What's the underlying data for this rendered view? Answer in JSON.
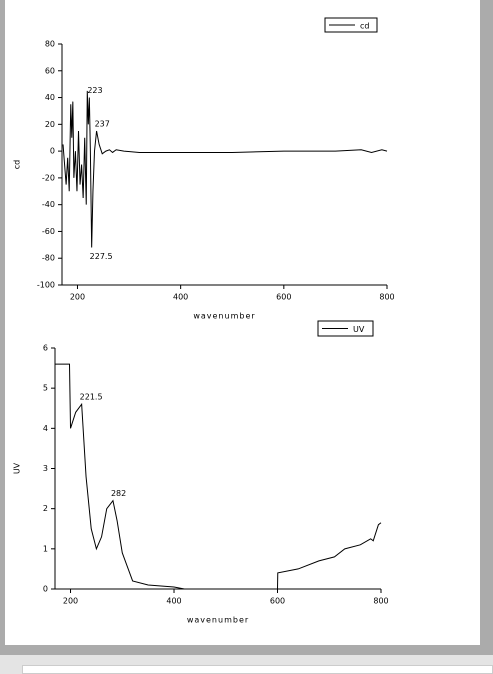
{
  "chart_data": [
    {
      "type": "line",
      "xlabel": "wavenumber",
      "ylabel": "cd",
      "x": [
        172,
        175,
        178,
        181,
        184,
        187,
        189,
        191,
        193,
        196,
        199,
        202,
        205,
        208,
        211,
        214,
        217,
        219,
        221,
        223,
        225,
        227.5,
        230,
        233,
        237,
        242,
        248,
        255,
        262,
        268,
        275,
        290,
        320,
        400,
        500,
        600,
        700,
        750,
        770,
        790,
        800
      ],
      "series": [
        {
          "name": "cd",
          "color": "#000000",
          "values": [
            5,
            -10,
            -25,
            -5,
            -30,
            35,
            10,
            37,
            -20,
            0,
            -30,
            15,
            -25,
            -10,
            -35,
            10,
            -40,
            45,
            20,
            40,
            0,
            -72,
            -30,
            0,
            15,
            5,
            -2,
            0,
            1,
            -1,
            1,
            0,
            -1,
            -1,
            -1,
            0,
            0,
            1,
            -1,
            1,
            0
          ]
        }
      ],
      "annotations": [
        "223",
        "237",
        "227.5"
      ],
      "xlim": [
        170,
        800
      ],
      "xticks": [
        200,
        400,
        600,
        800
      ],
      "ylim": [
        -100,
        80
      ],
      "yticks": [
        -100,
        -80,
        -60,
        -40,
        -20,
        0,
        20,
        40,
        60,
        80
      ],
      "legend": "upper right"
    },
    {
      "type": "line",
      "xlabel": "wavenumber",
      "ylabel": "UV",
      "x": [
        170,
        198,
        200,
        210,
        221.5,
        230,
        240,
        250,
        260,
        270,
        282,
        290,
        300,
        320,
        350,
        400,
        420,
        600,
        600.5,
        640,
        680,
        710,
        730,
        760,
        780,
        785,
        795,
        800
      ],
      "series": [
        {
          "name": "UV",
          "color": "#000000",
          "values": [
            5.6,
            5.6,
            4.0,
            4.4,
            4.6,
            2.8,
            1.5,
            1.0,
            1.3,
            2.0,
            2.2,
            1.7,
            0.9,
            0.2,
            0.1,
            0.05,
            0,
            0,
            0.4,
            0.5,
            0.7,
            0.8,
            1.0,
            1.1,
            1.25,
            1.2,
            1.6,
            1.65
          ]
        }
      ],
      "annotations": [
        "221.5",
        "282"
      ],
      "xlim": [
        170,
        800
      ],
      "xticks": [
        200,
        400,
        600,
        800
      ],
      "ylim": [
        0,
        6
      ],
      "yticks": [
        0,
        1,
        2,
        3,
        4,
        5,
        6
      ],
      "legend": "upper right"
    }
  ]
}
